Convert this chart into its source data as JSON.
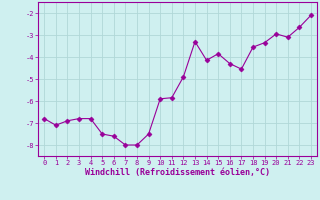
{
  "x": [
    0,
    1,
    2,
    3,
    4,
    5,
    6,
    7,
    8,
    9,
    10,
    11,
    12,
    13,
    14,
    15,
    16,
    17,
    18,
    19,
    20,
    21,
    22,
    23
  ],
  "y": [
    -6.8,
    -7.1,
    -6.9,
    -6.8,
    -6.8,
    -7.5,
    -7.6,
    -8.0,
    -8.0,
    -7.5,
    -5.9,
    -5.85,
    -4.9,
    -3.3,
    -4.15,
    -3.85,
    -4.3,
    -4.55,
    -3.55,
    -3.35,
    -2.95,
    -3.1,
    -2.65,
    -2.1
  ],
  "line_color": "#990099",
  "marker": "D",
  "markersize": 2.5,
  "linewidth": 0.8,
  "bg_color": "#cff0f0",
  "grid_color": "#b0d8d8",
  "xlabel": "Windchill (Refroidissement éolien,°C)",
  "xlabel_color": "#990099",
  "tick_color": "#990099",
  "axis_color": "#990099",
  "ylim": [
    -8.5,
    -1.5
  ],
  "xlim": [
    -0.5,
    23.5
  ],
  "yticks": [
    -8,
    -7,
    -6,
    -5,
    -4,
    -3,
    -2
  ],
  "xticks": [
    0,
    1,
    2,
    3,
    4,
    5,
    6,
    7,
    8,
    9,
    10,
    11,
    12,
    13,
    14,
    15,
    16,
    17,
    18,
    19,
    20,
    21,
    22,
    23
  ],
  "label_fontsize": 5.0,
  "xlabel_fontsize": 6.0
}
